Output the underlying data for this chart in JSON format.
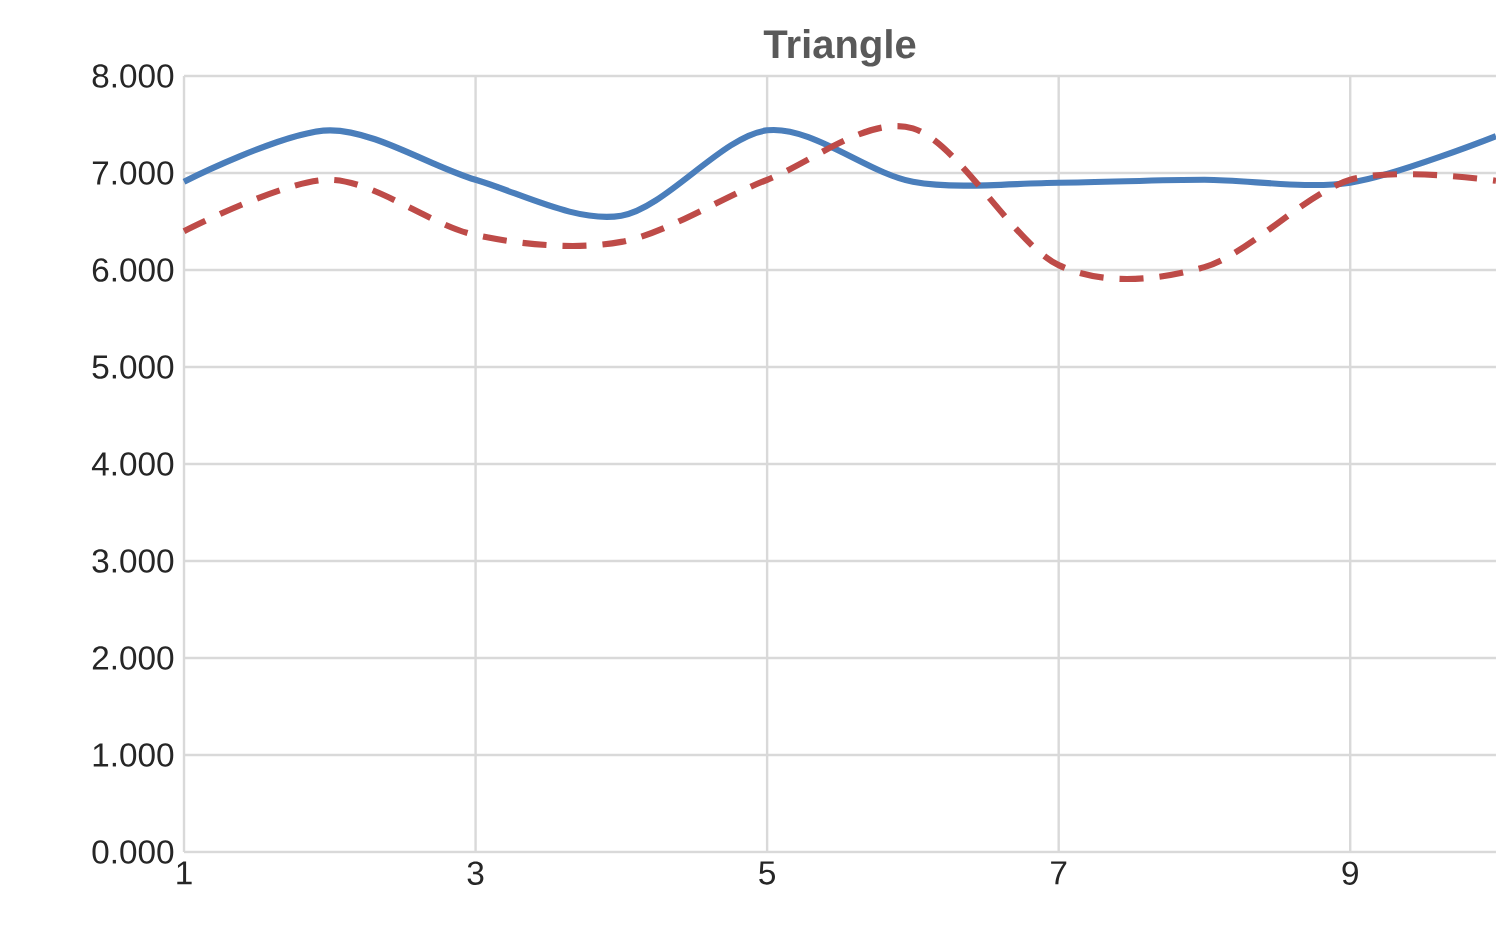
{
  "chart_data": {
    "type": "line",
    "title": "Triangle",
    "x": [
      1,
      2,
      3,
      4,
      5,
      6,
      7,
      8,
      9,
      10
    ],
    "xlim": [
      1,
      10
    ],
    "xticks": [
      1,
      3,
      5,
      7,
      9
    ],
    "ylim": [
      0,
      8
    ],
    "yticks": [
      {
        "value": 0,
        "label": "0.000"
      },
      {
        "value": 1,
        "label": "1.000"
      },
      {
        "value": 2,
        "label": "2.000"
      },
      {
        "value": 3,
        "label": "3.000"
      },
      {
        "value": 4,
        "label": "4.000"
      },
      {
        "value": 5,
        "label": "5.000"
      },
      {
        "value": 6,
        "label": "6.000"
      },
      {
        "value": 7,
        "label": "7.000"
      },
      {
        "value": 8,
        "label": "8.000"
      }
    ],
    "grid": true,
    "legend": false,
    "marker": "none",
    "series": [
      {
        "color": "#4a7ebb",
        "line_style": "solid",
        "values": [
          6.91,
          7.44,
          6.93,
          6.56,
          7.44,
          6.91,
          6.9,
          6.93,
          6.9,
          7.38
        ]
      },
      {
        "color": "#be4b48",
        "line_style": "dashed",
        "values": [
          6.4,
          6.93,
          6.36,
          6.29,
          6.93,
          7.46,
          6.05,
          6.03,
          6.93,
          6.92
        ]
      }
    ]
  }
}
